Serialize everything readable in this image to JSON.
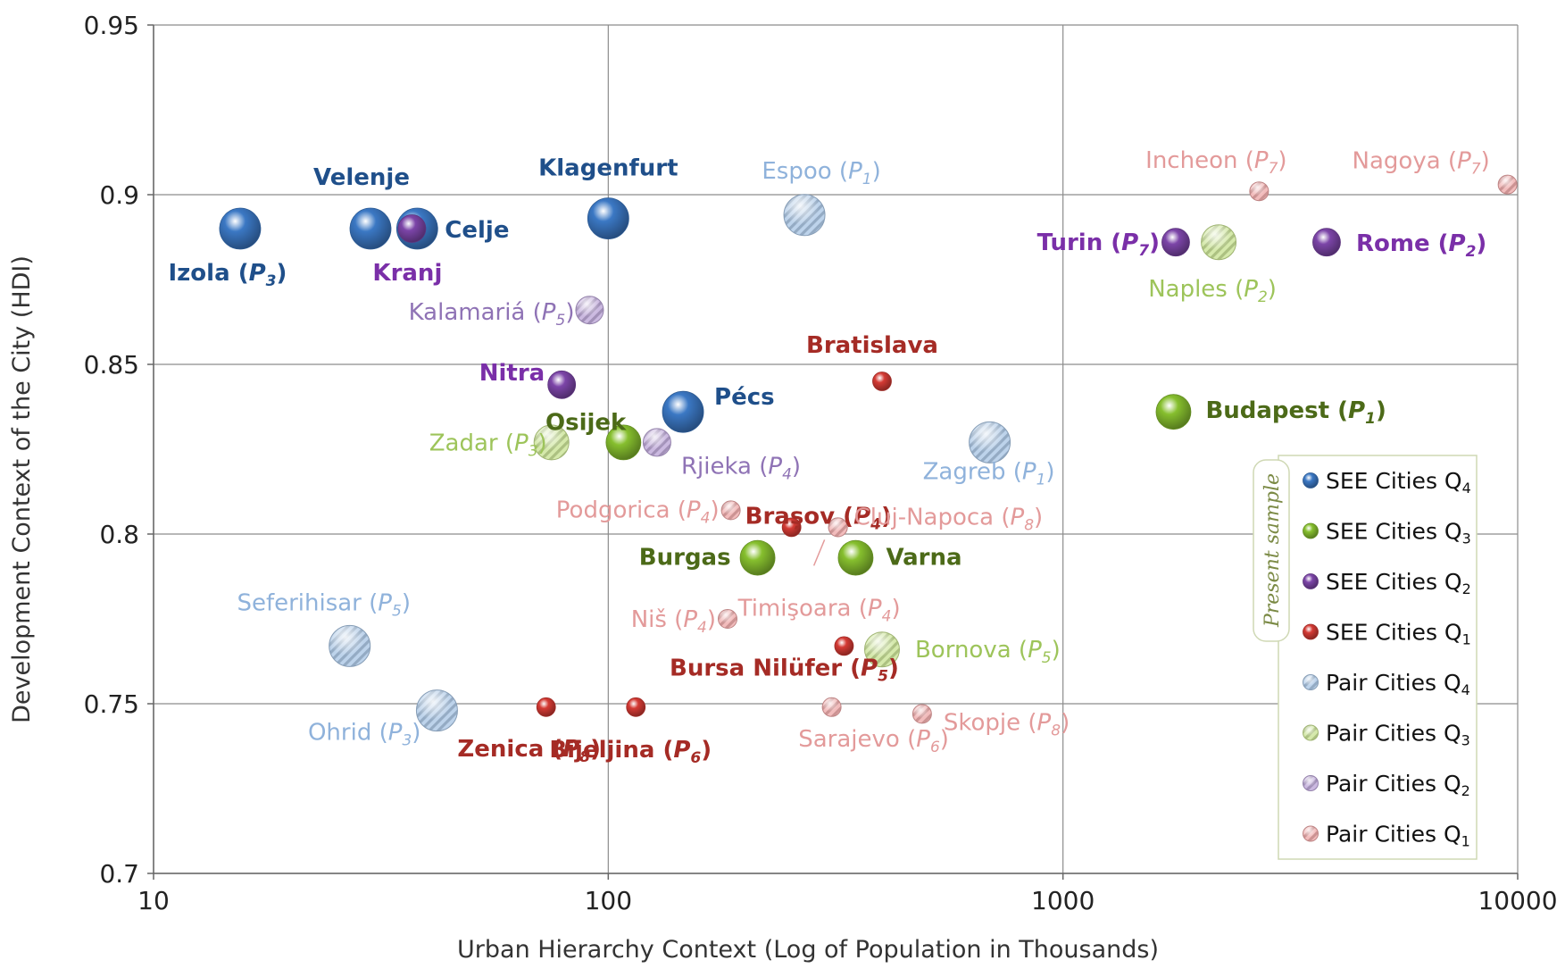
{
  "chart_data": {
    "type": "scatter",
    "xlabel": "Urban Hierarchy Context (Log of Population in Thousands)",
    "ylabel": "Development Context of the City (HDI)",
    "x_scale": "log",
    "xlim": [
      10,
      10000
    ],
    "ylim": [
      0.7,
      0.95
    ],
    "x_ticks": [
      "10",
      "100",
      "1000",
      "10000"
    ],
    "y_ticks": [
      "0.7",
      "0.75",
      "0.8",
      "0.85",
      "0.9",
      "0.95"
    ],
    "grid": true,
    "legend_title": "Present sample",
    "legend_position": "right",
    "series_colors": {
      "SEE Cities Q4": "#3b78c4",
      "SEE Cities Q3": "#86bf2e",
      "SEE Cities Q2": "#7c45a8",
      "SEE Cities Q1": "#d43a34",
      "Pair Cities Q4": "#a7c4e4",
      "Pair Cities Q3": "#c7e18f",
      "Pair Cities Q2": "#b9a2d6",
      "Pair Cities Q1": "#eda6a6"
    },
    "label_colors": {
      "SEE Cities Q4": "#1f4f8a",
      "SEE Cities Q3": "#4c6a18",
      "SEE Cities Q2": "#7a2fa8",
      "SEE Cities Q1": "#a52b25",
      "Pair Cities Q4": "#8fb2db",
      "Pair Cities Q3": "#9dc45a",
      "Pair Cities Q2": "#8f73b5",
      "Pair Cities Q1": "#e39a9a"
    },
    "legend": [
      {
        "sub": "4",
        "label": "SEE Cities Q",
        "series": "SEE Cities Q4"
      },
      {
        "sub": "3",
        "label": "SEE Cities Q",
        "series": "SEE Cities Q3"
      },
      {
        "sub": "2",
        "label": "SEE Cities Q",
        "series": "SEE Cities Q2"
      },
      {
        "sub": "1",
        "label": "SEE Cities Q",
        "series": "SEE Cities Q1"
      },
      {
        "sub": "4",
        "label": "Pair Cities Q",
        "series": "Pair Cities Q4"
      },
      {
        "sub": "3",
        "label": "Pair Cities Q",
        "series": "Pair Cities Q3"
      },
      {
        "sub": "2",
        "label": "Pair Cities Q",
        "series": "Pair Cities Q2"
      },
      {
        "sub": "1",
        "label": "Pair Cities Q",
        "series": "Pair Cities Q1"
      }
    ],
    "points": [
      {
        "name": "Izola",
        "sub": "3",
        "series": "SEE Cities Q4",
        "x": 15.5,
        "y": 0.89
      },
      {
        "name": "Velenje",
        "sub": "",
        "series": "SEE Cities Q4",
        "x": 30,
        "y": 0.89
      },
      {
        "name": "Celje",
        "sub": "",
        "series": "SEE Cities Q4",
        "x": 38,
        "y": 0.89
      },
      {
        "name": "Klagenfurt",
        "sub": "",
        "series": "SEE Cities Q4",
        "x": 100,
        "y": 0.893
      },
      {
        "name": "Pécs",
        "sub": "",
        "series": "SEE Cities Q4",
        "x": 146,
        "y": 0.836
      },
      {
        "name": "Kranj",
        "sub": "",
        "series": "SEE Cities Q2",
        "x": 37,
        "y": 0.89
      },
      {
        "name": "Nitra",
        "sub": "",
        "series": "SEE Cities Q2",
        "x": 79,
        "y": 0.844
      },
      {
        "name": "Turin",
        "sub": "7",
        "series": "SEE Cities Q2",
        "x": 1770,
        "y": 0.886
      },
      {
        "name": "Rome",
        "sub": "2",
        "series": "SEE Cities Q2",
        "x": 3800,
        "y": 0.886
      },
      {
        "name": "Osijek",
        "sub": "",
        "series": "SEE Cities Q3",
        "x": 108,
        "y": 0.827
      },
      {
        "name": "Burgas",
        "sub": "",
        "series": "SEE Cities Q3",
        "x": 213,
        "y": 0.793
      },
      {
        "name": "Varna",
        "sub": "",
        "series": "SEE Cities Q3",
        "x": 350,
        "y": 0.793
      },
      {
        "name": "Budapest",
        "sub": "1",
        "series": "SEE Cities Q3",
        "x": 1750,
        "y": 0.836
      },
      {
        "name": "Bratislava",
        "sub": "",
        "series": "SEE Cities Q1",
        "x": 400,
        "y": 0.845
      },
      {
        "name": "Brașov",
        "sub": "4",
        "series": "SEE Cities Q1",
        "x": 253,
        "y": 0.802
      },
      {
        "name": "Bursa Nilüfer",
        "sub": "5",
        "series": "SEE Cities Q1",
        "x": 330,
        "y": 0.767
      },
      {
        "name": "Zenica",
        "sub": "8",
        "series": "SEE Cities Q1",
        "x": 73,
        "y": 0.749
      },
      {
        "name": "Bijeljina",
        "sub": "6",
        "series": "SEE Cities Q1",
        "x": 115,
        "y": 0.749
      },
      {
        "name": "Espoo",
        "sub": "1",
        "series": "Pair Cities Q4",
        "x": 270,
        "y": 0.894
      },
      {
        "name": "Zagreb",
        "sub": "1",
        "series": "Pair Cities Q4",
        "x": 690,
        "y": 0.827
      },
      {
        "name": "Seferihisar",
        "sub": "5",
        "series": "Pair Cities Q4",
        "x": 27,
        "y": 0.767
      },
      {
        "name": "Ohrid",
        "sub": "3",
        "series": "Pair Cities Q4",
        "x": 42,
        "y": 0.748
      },
      {
        "name": "Naples",
        "sub": "2",
        "series": "Pair Cities Q3",
        "x": 2200,
        "y": 0.886
      },
      {
        "name": "Zadar",
        "sub": "3",
        "series": "Pair Cities Q3",
        "x": 75,
        "y": 0.827
      },
      {
        "name": "Bornova",
        "sub": "5",
        "series": "Pair Cities Q3",
        "x": 400,
        "y": 0.766
      },
      {
        "name": "Kalamariá",
        "sub": "5",
        "series": "Pair Cities Q2",
        "x": 91,
        "y": 0.866
      },
      {
        "name": "Rjieka",
        "sub": "4",
        "series": "Pair Cities Q2",
        "x": 128,
        "y": 0.827
      },
      {
        "name": "Incheon",
        "sub": "7",
        "series": "Pair Cities Q1",
        "x": 2700,
        "y": 0.901
      },
      {
        "name": "Nagoya",
        "sub": "7",
        "series": "Pair Cities Q1",
        "x": 9500,
        "y": 0.903
      },
      {
        "name": "Podgorica",
        "sub": "4",
        "series": "Pair Cities Q1",
        "x": 186,
        "y": 0.807
      },
      {
        "name": "Cluj-Napoca",
        "sub": "8",
        "series": "Pair Cities Q1",
        "x": 320,
        "y": 0.802
      },
      {
        "name": "Timişoara",
        "sub": "4",
        "series": "Pair Cities Q1",
        "x": 320,
        "y": 0.802
      },
      {
        "name": "Niš",
        "sub": "4",
        "series": "Pair Cities Q1",
        "x": 183,
        "y": 0.775
      },
      {
        "name": "Sarajevo",
        "sub": "6",
        "series": "Pair Cities Q1",
        "x": 310,
        "y": 0.749
      },
      {
        "name": "Skopje",
        "sub": "8",
        "series": "Pair Cities Q1",
        "x": 490,
        "y": 0.747
      }
    ]
  }
}
